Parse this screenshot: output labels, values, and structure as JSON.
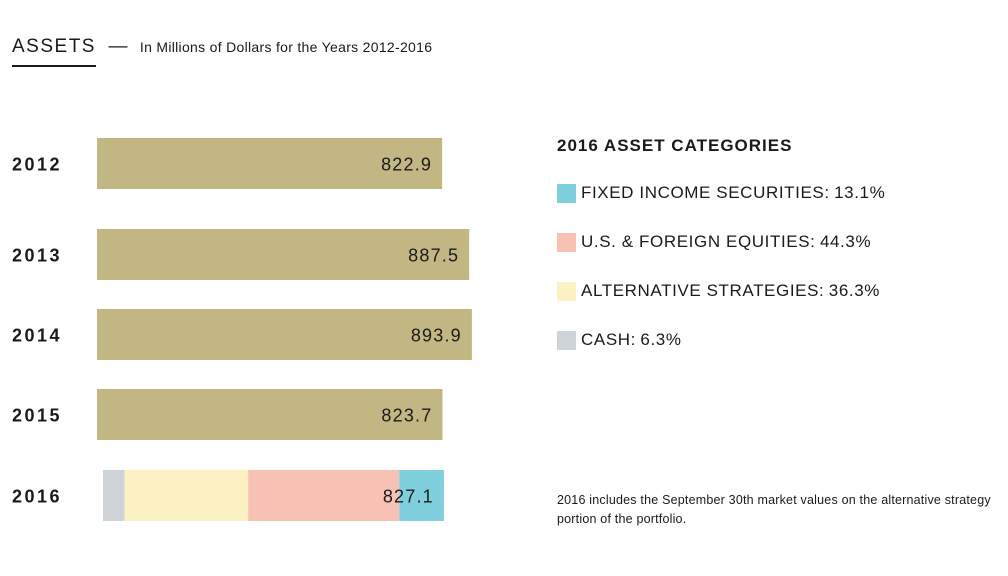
{
  "header": {
    "title": "ASSETS",
    "dash": "—",
    "subtitle": "In Millions of Dollars for the Years 2012-2016"
  },
  "chart_data": {
    "type": "bar",
    "orientation": "horizontal",
    "title": "ASSETS",
    "subtitle": "In Millions of Dollars for the Years 2012-2016",
    "categories": [
      "2012",
      "2013",
      "2014",
      "2015",
      "2016"
    ],
    "values": [
      822.9,
      887.5,
      893.9,
      823.7,
      827.1
    ],
    "value_labels": [
      "822.9",
      "887.5",
      "893.9",
      "823.7",
      "827.1"
    ],
    "bar_color": "#c2b783",
    "stacked_2016": [
      {
        "name": "CASH",
        "percent": 6.3,
        "color": "#cdd3d6"
      },
      {
        "name": "ALTERNATIVE STRATEGIES",
        "percent": 36.3,
        "color": "#fbf1c2"
      },
      {
        "name": "U.S. & FOREIGN EQUITIES",
        "percent": 44.3,
        "color": "#f7c1b4"
      },
      {
        "name": "FIXED INCOME SECURITIES",
        "percent": 13.1,
        "color": "#7fcfdc"
      }
    ],
    "grid": false,
    "legend_placement": "right"
  },
  "legend": {
    "title": "2016 ASSET CATEGORIES",
    "items": [
      {
        "label": "FIXED INCOME SECURITIES:",
        "value": "13.1%",
        "color": "#7fcfdc"
      },
      {
        "label": "U.S. & FOREIGN EQUITIES:",
        "value": "44.3%",
        "color": "#f7c1b4"
      },
      {
        "label": "ALTERNATIVE STRATEGIES:",
        "value": "36.3%",
        "color": "#fbf1c2"
      },
      {
        "label": "CASH:",
        "value": "6.3%",
        "color": "#cdd3d6"
      }
    ]
  },
  "note": "2016 includes the September 30th market values on the alternative strategy portion of the portfolio."
}
